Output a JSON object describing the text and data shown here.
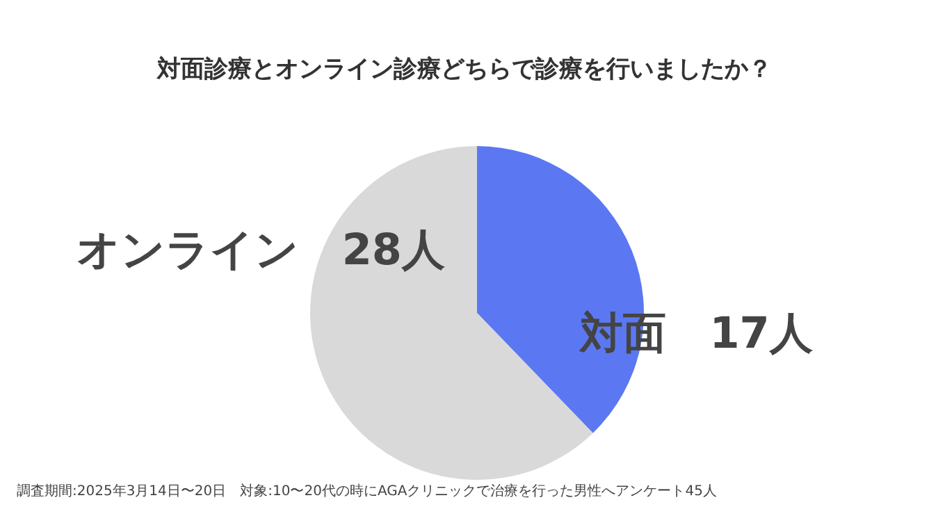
{
  "chart_data": {
    "type": "pie",
    "title": "対面診療とオンライン診療どちらで診療を行いましたか？",
    "categories": [
      "対面",
      "オンライン"
    ],
    "values": [
      17,
      28
    ],
    "value_labels": [
      "17人",
      "28人"
    ],
    "colors": [
      "#5b78f2",
      "#d9d9d9"
    ],
    "annotations": [
      "調査期間:2025年3月14日〜20日　対象:10〜20代の時にAGAクリニックで治療を行った男性へアンケート45人"
    ]
  }
}
